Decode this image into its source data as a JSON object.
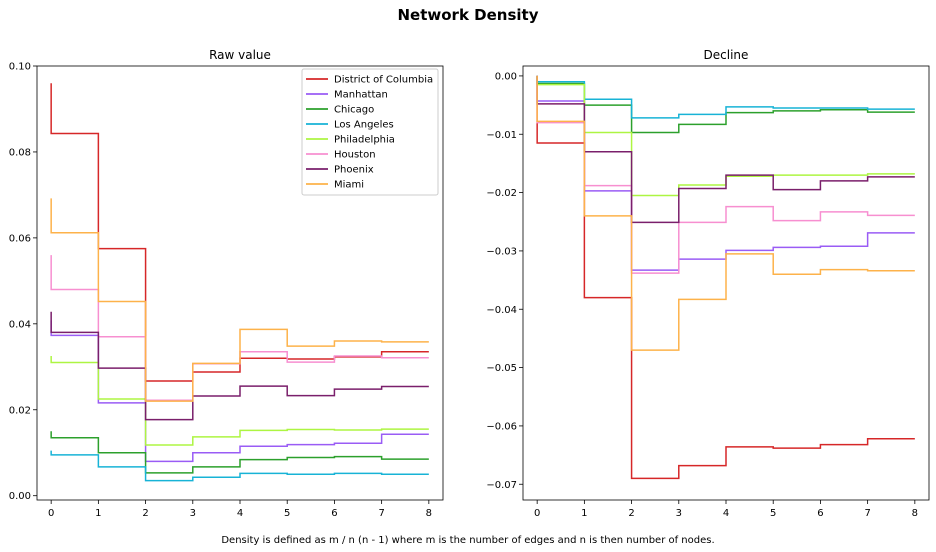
{
  "title": "Network Density",
  "caption": "Density is defined as m / n (n - 1) where m is the number of edges and n is then number of nodes.",
  "chart_data": [
    {
      "type": "line",
      "step": true,
      "title": "Raw value",
      "xlabel": "",
      "ylabel": "",
      "xlim": [
        -0.3,
        8.3
      ],
      "ylim": [
        -0.001,
        0.1
      ],
      "xticks": [
        0,
        1,
        2,
        3,
        4,
        5,
        6,
        7,
        8
      ],
      "yticks": [
        0.0,
        0.02,
        0.04,
        0.06,
        0.08,
        0.1
      ],
      "ytick_labels": [
        "0.00",
        "0.02",
        "0.04",
        "0.06",
        "0.08",
        "0.10"
      ],
      "legend_position": "top-right",
      "series": [
        {
          "name": "District of Columbia",
          "color": "#d62728",
          "start": 0.096,
          "values": [
            0.0843,
            0.0575,
            0.0267,
            0.0288,
            0.032,
            0.0318,
            0.0323,
            0.0335
          ]
        },
        {
          "name": "Manhattan",
          "color": "#9a5cf5",
          "start": 0.0408,
          "values": [
            0.0373,
            0.0216,
            0.008,
            0.01,
            0.0115,
            0.0119,
            0.0122,
            0.0143
          ]
        },
        {
          "name": "Chicago",
          "color": "#2ca02c",
          "start": 0.015,
          "values": [
            0.0135,
            0.01,
            0.0053,
            0.0067,
            0.0084,
            0.0089,
            0.0091,
            0.0085
          ]
        },
        {
          "name": "Los Angeles",
          "color": "#17b3d6",
          "start": 0.0105,
          "values": [
            0.0095,
            0.0067,
            0.0035,
            0.0043,
            0.0052,
            0.005,
            0.0052,
            0.005
          ]
        },
        {
          "name": "Philadelphia",
          "color": "#adf542",
          "start": 0.0325,
          "values": [
            0.031,
            0.0225,
            0.0118,
            0.0137,
            0.0152,
            0.0154,
            0.0153,
            0.0155
          ]
        },
        {
          "name": "Houston",
          "color": "#f78fd0",
          "start": 0.056,
          "values": [
            0.048,
            0.037,
            0.0222,
            0.0307,
            0.0335,
            0.0311,
            0.0325,
            0.0321
          ]
        },
        {
          "name": "Phoenix",
          "color": "#7a1f6b",
          "start": 0.0428,
          "values": [
            0.038,
            0.0297,
            0.0177,
            0.0232,
            0.0255,
            0.0233,
            0.0248,
            0.0254
          ]
        },
        {
          "name": "Miami",
          "color": "#fdb24a",
          "start": 0.0692,
          "values": [
            0.0612,
            0.0452,
            0.022,
            0.0308,
            0.0387,
            0.0348,
            0.036,
            0.0358
          ]
        }
      ]
    },
    {
      "type": "line",
      "step": true,
      "title": "Decline",
      "xlabel": "",
      "ylabel": "",
      "xlim": [
        -0.3,
        8.3
      ],
      "ylim": [
        -0.0727,
        0.0017
      ],
      "xticks": [
        0,
        1,
        2,
        3,
        4,
        5,
        6,
        7,
        8
      ],
      "yticks": [
        0.0,
        -0.01,
        -0.02,
        -0.03,
        -0.04,
        -0.05,
        -0.06,
        -0.07
      ],
      "ytick_labels": [
        "0.00",
        "−0.01",
        "−0.02",
        "−0.03",
        "−0.04",
        "−0.05",
        "−0.06",
        "−0.07"
      ],
      "series": [
        {
          "name": "District of Columbia",
          "color": "#d62728",
          "start": 0.0,
          "values": [
            -0.0115,
            -0.038,
            -0.069,
            -0.0668,
            -0.0636,
            -0.0638,
            -0.0632,
            -0.0622
          ]
        },
        {
          "name": "Manhattan",
          "color": "#9a5cf5",
          "start": 0.0,
          "values": [
            -0.0043,
            -0.0197,
            -0.0333,
            -0.0314,
            -0.0299,
            -0.0294,
            -0.0292,
            -0.0269
          ]
        },
        {
          "name": "Chicago",
          "color": "#2ca02c",
          "start": 0.0,
          "values": [
            -0.0013,
            -0.005,
            -0.0097,
            -0.0083,
            -0.0063,
            -0.006,
            -0.0058,
            -0.0062
          ]
        },
        {
          "name": "Los Angeles",
          "color": "#17b3d6",
          "start": 0.0,
          "values": [
            -0.001,
            -0.004,
            -0.0072,
            -0.0066,
            -0.0053,
            -0.0055,
            -0.0055,
            -0.0057
          ]
        },
        {
          "name": "Philadelphia",
          "color": "#adf542",
          "start": 0.0,
          "values": [
            -0.0015,
            -0.0097,
            -0.0205,
            -0.0187,
            -0.0172,
            -0.017,
            -0.017,
            -0.0168
          ]
        },
        {
          "name": "Houston",
          "color": "#f78fd0",
          "start": 0.0,
          "values": [
            -0.008,
            -0.0188,
            -0.0338,
            -0.0251,
            -0.0224,
            -0.0248,
            -0.0233,
            -0.0239
          ]
        },
        {
          "name": "Phoenix",
          "color": "#7a1f6b",
          "start": 0.0,
          "values": [
            -0.0048,
            -0.013,
            -0.0251,
            -0.0193,
            -0.017,
            -0.0195,
            -0.018,
            -0.0173
          ]
        },
        {
          "name": "Miami",
          "color": "#fdb24a",
          "start": 0.0,
          "values": [
            -0.0078,
            -0.024,
            -0.047,
            -0.0383,
            -0.0305,
            -0.034,
            -0.0332,
            -0.0334
          ]
        }
      ]
    }
  ]
}
